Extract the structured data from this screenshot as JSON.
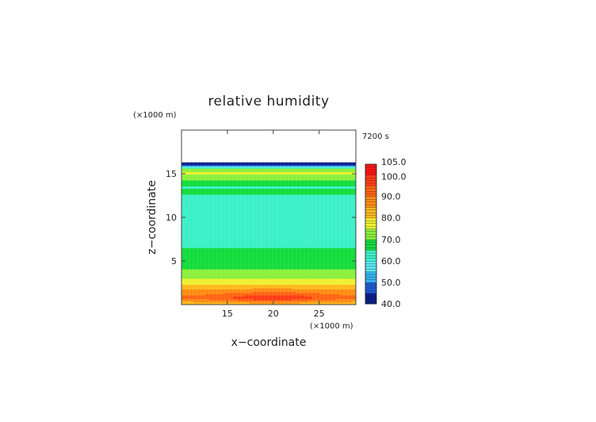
{
  "chart_data": {
    "type": "heatmap",
    "title": "relative humidity",
    "xlabel": "x−coordinate",
    "ylabel": "z−coordinate",
    "x_unit": "(×1000 m)",
    "y_unit": "(×1000 m)",
    "time_label": "7200 s",
    "xlim": [
      10,
      29
    ],
    "ylim": [
      0,
      20
    ],
    "x_ticks": [
      15,
      20,
      25
    ],
    "y_ticks": [
      5,
      10,
      15
    ],
    "colorbar": {
      "min": 40.0,
      "max": 105.0,
      "tick_values": [
        40.0,
        50.0,
        60.0,
        70.0,
        80.0,
        90.0,
        100.0,
        105.0
      ],
      "tick_labels": [
        "40.0",
        "50.0",
        "60.0",
        "70.0",
        "80.0",
        "90.0",
        "100.0",
        "105.0"
      ]
    },
    "profile": {
      "z": [
        0.0,
        0.5,
        0.8,
        1.2,
        1.6,
        2.0,
        2.6,
        3.2,
        3.8,
        4.4,
        5.0,
        5.5,
        6.0,
        6.5,
        7.2,
        8.0,
        9.0,
        10.0,
        11.0,
        12.0,
        12.5,
        13.0,
        13.5,
        14.0,
        14.5,
        15.0,
        15.5,
        15.8,
        16.0,
        16.2
      ],
      "rh": [
        80,
        87,
        92,
        89,
        87,
        83,
        78,
        74,
        71,
        69,
        67,
        66,
        68,
        65,
        61,
        60,
        60,
        60,
        60,
        61,
        64,
        67,
        64,
        68,
        72,
        76,
        73,
        58,
        45,
        40
      ]
    },
    "center_bump": {
      "x_center": 20,
      "width": 5,
      "z_center": 0.8,
      "amount": 8
    },
    "blank_above_z": 16.3
  }
}
